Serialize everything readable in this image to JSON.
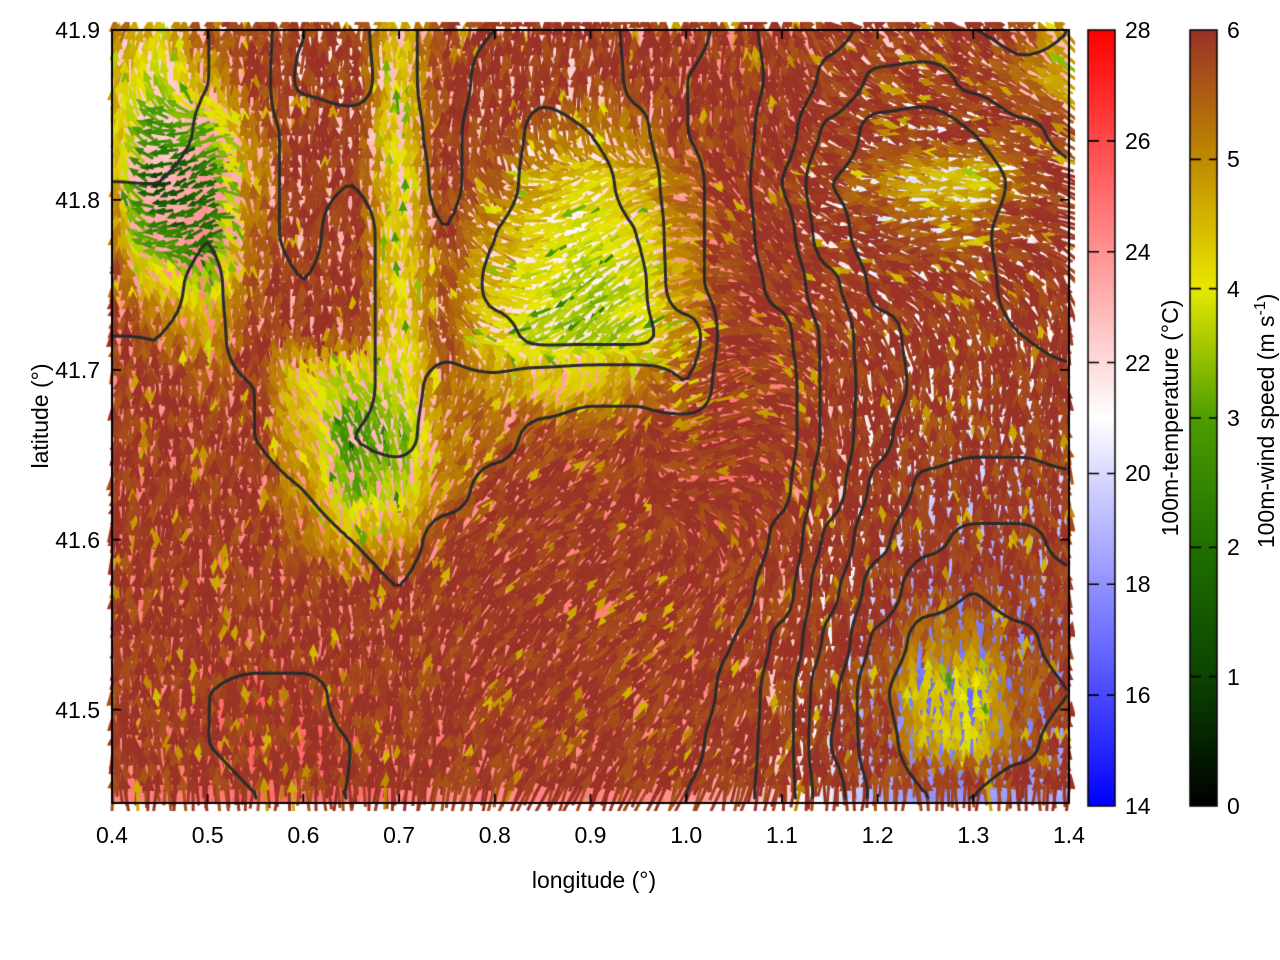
{
  "chart_data": {
    "type": "heatmap",
    "subtype": "vector-field-over-temperature-map",
    "title": "",
    "x_axis": {
      "label": "longitude (°)",
      "min": 0.4,
      "max": 1.4,
      "tick_values": [
        0.4,
        0.5,
        0.6,
        0.7,
        0.8,
        0.9,
        1.0,
        1.1,
        1.2,
        1.3,
        1.4
      ],
      "tick_labels": [
        "0.4",
        "0.5",
        "0.6",
        "0.7",
        "0.8",
        "0.9",
        "1.0",
        "1.1",
        "1.2",
        "1.3",
        "1.4"
      ]
    },
    "y_axis": {
      "label": "latitude (°)",
      "min": 41.445,
      "max": 41.9,
      "tick_values": [
        41.5,
        41.6,
        41.7,
        41.8,
        41.9
      ],
      "tick_labels": [
        "41.5",
        "41.6",
        "41.7",
        "41.8",
        "41.9"
      ]
    },
    "colorbars": [
      {
        "id": "temperature",
        "label": "100m-temperature (°C)",
        "min": 14,
        "max": 28,
        "tick_values": [
          14,
          16,
          18,
          20,
          22,
          24,
          26,
          28
        ],
        "tick_labels": [
          "14",
          "16",
          "18",
          "20",
          "22",
          "24",
          "26",
          "28"
        ],
        "stops": [
          {
            "v": 14,
            "c": "#0000ff"
          },
          {
            "v": 21,
            "c": "#ffffff"
          },
          {
            "v": 28,
            "c": "#ff0000"
          }
        ]
      },
      {
        "id": "wind-speed",
        "label_prefix": "100m-wind speed (m s",
        "label_sup": "-1",
        "label_suffix": ")",
        "min": 0,
        "max": 6,
        "tick_values": [
          0,
          1,
          2,
          3,
          4,
          5,
          6
        ],
        "tick_labels": [
          "0",
          "1",
          "2",
          "3",
          "4",
          "5",
          "6"
        ],
        "stops": [
          {
            "v": 0,
            "c": "#000000"
          },
          {
            "v": 1,
            "c": "#0b4400"
          },
          {
            "v": 2,
            "c": "#1f7000"
          },
          {
            "v": 3,
            "c": "#4d9e00"
          },
          {
            "v": 4,
            "c": "#e8e800"
          },
          {
            "v": 5,
            "c": "#c08a00"
          },
          {
            "v": 6,
            "c": "#9a3227"
          }
        ]
      }
    ],
    "contour_levels": [
      18,
      19,
      20,
      21,
      22,
      23,
      24,
      25
    ],
    "contour_color": "#2b2b2b",
    "frame_color": "#000000",
    "grid": {
      "lon_start": 0.4,
      "lon_step": 0.05,
      "n_lon": 21,
      "lat_start": 41.9,
      "lat_step": -0.03,
      "n_lat": 16
    },
    "temperature_c": [
      [
        22.4,
        22.2,
        23.0,
        23.4,
        22.0,
        21.6,
        22.8,
        23.4,
        23.0,
        22.6,
        22.6,
        23.2,
        23.8,
        24.2,
        23.8,
        23.2,
        22.8,
        22.8,
        23.0,
        23.2,
        23.0
      ],
      [
        22.6,
        22.2,
        23.0,
        23.4,
        21.8,
        21.4,
        22.8,
        23.4,
        22.6,
        22.2,
        22.4,
        23.2,
        24.0,
        24.4,
        23.8,
        22.8,
        21.8,
        21.6,
        22.2,
        22.8,
        22.8
      ],
      [
        22.8,
        22.4,
        23.2,
        23.2,
        22.8,
        22.6,
        22.8,
        23.2,
        22.4,
        21.8,
        22.0,
        22.8,
        24.0,
        24.4,
        23.4,
        21.8,
        20.6,
        20.4,
        21.0,
        21.8,
        22.2
      ],
      [
        23.0,
        23.0,
        23.6,
        23.2,
        22.8,
        23.0,
        22.6,
        23.2,
        22.4,
        21.6,
        21.6,
        22.4,
        23.8,
        24.4,
        23.0,
        21.0,
        20.4,
        20.2,
        20.4,
        21.2,
        21.8
      ],
      [
        23.4,
        23.4,
        24.0,
        23.2,
        22.8,
        23.4,
        22.6,
        23.0,
        22.0,
        21.4,
        21.4,
        22.0,
        23.8,
        24.4,
        23.4,
        21.4,
        20.4,
        20.4,
        20.8,
        21.4,
        21.8
      ],
      [
        23.8,
        23.8,
        24.2,
        23.4,
        23.0,
        23.4,
        22.6,
        22.8,
        21.8,
        21.4,
        21.4,
        21.8,
        23.8,
        24.4,
        23.8,
        22.2,
        20.8,
        20.8,
        20.8,
        21.2,
        21.6
      ],
      [
        24.0,
        24.0,
        24.2,
        23.6,
        23.2,
        23.4,
        22.6,
        22.8,
        22.2,
        21.8,
        21.8,
        21.8,
        22.5,
        24.6,
        24.2,
        22.8,
        21.2,
        20.8,
        20.8,
        21.0,
        21.2
      ],
      [
        24.2,
        24.0,
        24.2,
        24.0,
        23.6,
        23.2,
        22.8,
        23.2,
        23.2,
        23.6,
        23.8,
        23.8,
        23.0,
        24.8,
        24.4,
        22.8,
        21.4,
        20.8,
        20.6,
        20.6,
        20.8
      ],
      [
        24.2,
        24.2,
        24.2,
        24.0,
        23.6,
        23.0,
        22.8,
        23.4,
        23.8,
        24.2,
        24.4,
        24.4,
        24.8,
        24.8,
        24.4,
        22.8,
        21.2,
        20.4,
        20.2,
        20.2,
        20.4
      ],
      [
        24.4,
        24.4,
        24.4,
        24.2,
        24.0,
        23.4,
        23.4,
        23.8,
        24.2,
        24.4,
        24.4,
        24.4,
        24.8,
        24.8,
        24.2,
        22.4,
        20.8,
        19.8,
        19.6,
        19.6,
        19.8
      ],
      [
        24.4,
        24.4,
        24.4,
        24.4,
        24.4,
        24.0,
        23.8,
        24.2,
        24.4,
        24.4,
        24.4,
        24.4,
        24.8,
        24.8,
        23.8,
        21.8,
        20.2,
        19.2,
        18.8,
        18.8,
        19.2
      ],
      [
        24.4,
        24.4,
        24.4,
        24.4,
        24.4,
        24.2,
        24.0,
        24.4,
        24.4,
        24.4,
        24.4,
        24.4,
        24.6,
        24.4,
        23.4,
        21.2,
        19.6,
        18.4,
        18.0,
        18.4,
        18.8
      ],
      [
        24.4,
        24.4,
        24.6,
        24.6,
        24.6,
        24.4,
        24.4,
        24.4,
        24.4,
        24.4,
        24.4,
        24.4,
        24.4,
        24.0,
        22.8,
        20.8,
        18.8,
        17.6,
        17.4,
        17.8,
        18.4
      ],
      [
        24.4,
        24.4,
        25.0,
        25.2,
        25.2,
        24.8,
        24.4,
        24.4,
        24.6,
        24.6,
        24.4,
        24.4,
        24.4,
        23.8,
        22.4,
        20.2,
        18.2,
        17.0,
        17.0,
        17.4,
        18.0
      ],
      [
        24.4,
        24.6,
        25.0,
        25.2,
        25.2,
        25.0,
        24.6,
        24.4,
        24.6,
        24.6,
        24.4,
        24.4,
        24.2,
        23.6,
        22.4,
        20.0,
        18.4,
        17.4,
        17.4,
        17.8,
        18.4
      ],
      [
        24.4,
        24.6,
        24.8,
        25.0,
        25.0,
        25.0,
        24.6,
        24.4,
        24.4,
        24.4,
        24.4,
        24.4,
        24.0,
        23.4,
        22.4,
        20.4,
        18.8,
        18.0,
        18.0,
        18.4,
        18.8
      ]
    ],
    "wind_speed_ms": [
      [
        5.2,
        4.6,
        5.9,
        5.9,
        5.9,
        5.9,
        4.5,
        5.9,
        5.9,
        5.9,
        5.9,
        5.9,
        5.9,
        5.9,
        5.9,
        5.9,
        5.9,
        5.9,
        5.9,
        5.9,
        4.8
      ],
      [
        4.6,
        3.6,
        4.8,
        5.9,
        5.9,
        5.9,
        4.3,
        5.9,
        5.9,
        5.9,
        5.9,
        5.9,
        5.9,
        5.9,
        5.9,
        5.9,
        5.9,
        5.9,
        5.9,
        5.5,
        4.6
      ],
      [
        4.4,
        2.6,
        3.2,
        5.4,
        5.9,
        5.9,
        4.2,
        5.9,
        5.9,
        5.6,
        5.2,
        5.4,
        5.9,
        5.9,
        5.9,
        5.9,
        5.9,
        5.9,
        5.9,
        5.9,
        5.9
      ],
      [
        4.6,
        1.0,
        1.8,
        5.2,
        5.9,
        5.9,
        4.2,
        5.9,
        5.6,
        4.6,
        4.2,
        4.6,
        5.4,
        5.9,
        5.9,
        5.9,
        5.4,
        4.6,
        4.4,
        5.4,
        5.9
      ],
      [
        5.0,
        2.4,
        2.0,
        5.4,
        5.9,
        5.9,
        4.2,
        5.8,
        5.0,
        4.2,
        3.8,
        4.2,
        5.0,
        5.9,
        5.9,
        5.9,
        5.9,
        5.6,
        5.4,
        5.9,
        5.9
      ],
      [
        5.6,
        4.2,
        3.4,
        5.6,
        5.9,
        5.9,
        4.2,
        5.6,
        4.6,
        3.8,
        3.4,
        3.8,
        4.8,
        5.9,
        5.9,
        5.9,
        5.9,
        5.9,
        5.9,
        5.9,
        5.9
      ],
      [
        5.9,
        5.4,
        4.8,
        5.8,
        5.9,
        5.9,
        4.2,
        5.6,
        4.4,
        3.6,
        3.4,
        3.8,
        5.0,
        5.9,
        5.9,
        5.9,
        5.9,
        5.9,
        5.9,
        5.9,
        5.9
      ],
      [
        5.9,
        5.9,
        5.6,
        5.9,
        4.2,
        3.4,
        3.8,
        5.4,
        4.8,
        4.4,
        4.4,
        5.0,
        5.6,
        5.9,
        5.9,
        5.9,
        5.9,
        5.9,
        5.9,
        5.9,
        5.9
      ],
      [
        5.9,
        5.9,
        5.9,
        5.9,
        4.6,
        2.8,
        3.2,
        5.2,
        5.6,
        5.6,
        5.6,
        5.9,
        5.9,
        5.9,
        5.9,
        5.9,
        5.9,
        5.9,
        5.9,
        5.9,
        5.9
      ],
      [
        5.9,
        5.9,
        5.9,
        5.9,
        5.0,
        3.2,
        3.6,
        5.4,
        5.9,
        5.9,
        5.9,
        5.9,
        5.9,
        5.9,
        5.9,
        5.9,
        5.9,
        5.9,
        5.9,
        5.9,
        5.9
      ],
      [
        5.9,
        5.9,
        5.9,
        5.9,
        5.4,
        4.4,
        4.8,
        5.8,
        5.9,
        5.9,
        5.9,
        5.9,
        5.9,
        5.9,
        5.9,
        5.9,
        5.9,
        5.9,
        5.9,
        5.9,
        5.9
      ],
      [
        5.9,
        5.9,
        5.9,
        5.9,
        5.9,
        5.9,
        5.9,
        5.9,
        5.9,
        5.9,
        5.9,
        5.9,
        5.9,
        5.9,
        5.9,
        5.9,
        5.9,
        5.9,
        5.9,
        5.9,
        5.9
      ],
      [
        5.9,
        5.9,
        5.9,
        5.9,
        5.9,
        5.9,
        5.9,
        5.9,
        5.9,
        5.9,
        5.9,
        5.9,
        5.9,
        5.9,
        5.9,
        5.9,
        5.9,
        5.4,
        5.2,
        5.9,
        5.9
      ],
      [
        5.9,
        5.9,
        5.9,
        5.9,
        5.9,
        5.9,
        5.9,
        5.9,
        5.9,
        5.9,
        5.9,
        5.9,
        5.9,
        5.9,
        5.9,
        5.9,
        5.6,
        4.4,
        4.0,
        5.4,
        5.9
      ],
      [
        5.9,
        5.9,
        5.9,
        5.9,
        5.9,
        5.9,
        5.9,
        5.9,
        5.9,
        5.9,
        5.9,
        5.9,
        5.9,
        5.9,
        5.9,
        5.9,
        5.9,
        4.6,
        4.2,
        5.6,
        5.9
      ],
      [
        5.9,
        5.9,
        5.9,
        5.9,
        5.9,
        5.9,
        5.9,
        5.9,
        5.9,
        5.9,
        5.9,
        5.9,
        5.9,
        5.9,
        5.9,
        5.9,
        5.9,
        5.9,
        5.9,
        5.9,
        5.9
      ]
    ],
    "wind_dir_deg": [
      [
        80,
        82,
        85,
        88,
        90,
        90,
        90,
        88,
        88,
        88,
        88,
        88,
        88,
        88,
        95,
        130,
        130,
        130,
        130,
        128,
        125
      ],
      [
        80,
        110,
        90,
        90,
        90,
        90,
        90,
        88,
        88,
        88,
        90,
        90,
        90,
        90,
        100,
        140,
        150,
        160,
        160,
        150,
        140
      ],
      [
        82,
        180,
        200,
        92,
        90,
        90,
        90,
        88,
        90,
        95,
        100,
        95,
        90,
        95,
        110,
        150,
        165,
        170,
        170,
        160,
        150
      ],
      [
        85,
        200,
        210,
        92,
        90,
        90,
        90,
        90,
        120,
        190,
        205,
        200,
        170,
        130,
        120,
        160,
        170,
        175,
        180,
        170,
        160
      ],
      [
        88,
        190,
        205,
        90,
        90,
        90,
        90,
        95,
        150,
        200,
        210,
        205,
        180,
        140,
        130,
        160,
        170,
        175,
        180,
        170,
        160
      ],
      [
        90,
        120,
        100,
        90,
        90,
        90,
        90,
        100,
        160,
        205,
        215,
        210,
        190,
        150,
        140,
        150,
        150,
        150,
        140,
        130,
        120
      ],
      [
        88,
        95,
        92,
        90,
        88,
        90,
        90,
        105,
        170,
        210,
        220,
        210,
        195,
        170,
        150,
        130,
        120,
        110,
        105,
        100,
        95
      ],
      [
        88,
        90,
        90,
        88,
        120,
        115,
        105,
        80,
        70,
        65,
        60,
        80,
        200,
        200,
        165,
        100,
        100,
        95,
        92,
        90,
        90
      ],
      [
        88,
        90,
        90,
        88,
        115,
        110,
        100,
        70,
        60,
        55,
        50,
        70,
        195,
        195,
        155,
        95,
        95,
        92,
        90,
        90,
        90
      ],
      [
        88,
        88,
        90,
        90,
        110,
        105,
        100,
        65,
        55,
        50,
        45,
        60,
        190,
        185,
        130,
        92,
        92,
        90,
        90,
        90,
        90
      ],
      [
        88,
        88,
        90,
        90,
        100,
        100,
        95,
        60,
        50,
        45,
        45,
        55,
        120,
        110,
        100,
        90,
        90,
        90,
        90,
        90,
        90
      ],
      [
        90,
        90,
        90,
        90,
        95,
        100,
        95,
        65,
        55,
        50,
        50,
        50,
        55,
        65,
        80,
        90,
        90,
        90,
        90,
        90,
        90
      ],
      [
        90,
        90,
        92,
        92,
        90,
        90,
        85,
        70,
        60,
        55,
        55,
        55,
        60,
        70,
        80,
        88,
        90,
        90,
        92,
        90,
        88
      ],
      [
        90,
        90,
        92,
        92,
        90,
        88,
        85,
        75,
        65,
        60,
        60,
        60,
        65,
        70,
        78,
        85,
        90,
        92,
        95,
        92,
        88
      ],
      [
        90,
        92,
        92,
        90,
        90,
        88,
        85,
        78,
        70,
        65,
        65,
        65,
        68,
        72,
        80,
        85,
        90,
        92,
        92,
        90,
        88
      ],
      [
        90,
        92,
        92,
        90,
        90,
        88,
        85,
        80,
        72,
        68,
        68,
        68,
        70,
        75,
        80,
        85,
        88,
        90,
        90,
        88,
        86
      ]
    ]
  }
}
